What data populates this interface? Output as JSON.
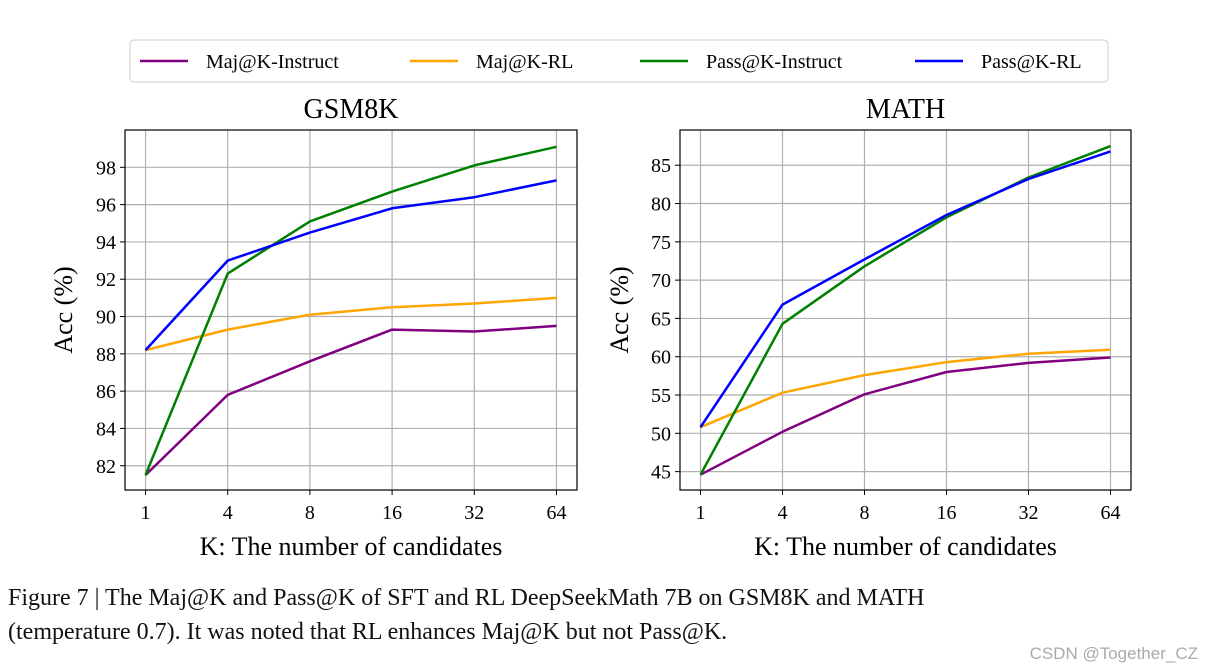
{
  "legend": {
    "placement": "top-center",
    "entries": [
      {
        "name": "Maj@K-Instruct",
        "color": "#800080"
      },
      {
        "name": "Maj@K-RL",
        "color": "#FFA500"
      },
      {
        "name": "Pass@K-Instruct",
        "color": "#008000"
      },
      {
        "name": "Pass@K-RL",
        "color": "#0000FF"
      }
    ]
  },
  "chart_data": [
    {
      "type": "line",
      "title": "GSM8K",
      "xlabel": "K: The number of candidates",
      "ylabel": "Acc (%)",
      "categories": [
        "1",
        "4",
        "8",
        "16",
        "32",
        "64"
      ],
      "ylim": [
        80.7,
        100
      ],
      "yticks": [
        82,
        84,
        86,
        88,
        90,
        92,
        94,
        96,
        98
      ],
      "grid": true,
      "series": [
        {
          "name": "Maj@K-Instruct",
          "values": [
            81.5,
            85.8,
            87.6,
            89.3,
            89.2,
            89.5
          ]
        },
        {
          "name": "Maj@K-RL",
          "values": [
            88.2,
            89.3,
            90.1,
            90.5,
            90.7,
            91.0
          ]
        },
        {
          "name": "Pass@K-Instruct",
          "values": [
            81.5,
            92.3,
            95.1,
            96.7,
            98.1,
            99.1
          ]
        },
        {
          "name": "Pass@K-RL",
          "values": [
            88.2,
            93.0,
            94.5,
            95.8,
            96.4,
            97.3
          ]
        }
      ]
    },
    {
      "type": "line",
      "title": "MATH",
      "xlabel": "K: The number of candidates",
      "ylabel": "Acc (%)",
      "categories": [
        "1",
        "4",
        "8",
        "16",
        "32",
        "64"
      ],
      "ylim": [
        42.6,
        89.6
      ],
      "yticks": [
        45,
        50,
        55,
        60,
        65,
        70,
        75,
        80,
        85
      ],
      "grid": true,
      "series": [
        {
          "name": "Maj@K-Instruct",
          "values": [
            44.6,
            50.2,
            55.1,
            58.0,
            59.2,
            59.9
          ]
        },
        {
          "name": "Maj@K-RL",
          "values": [
            50.8,
            55.3,
            57.6,
            59.3,
            60.4,
            60.9
          ]
        },
        {
          "name": "Pass@K-Instruct",
          "values": [
            44.6,
            64.3,
            71.8,
            78.2,
            83.4,
            87.5
          ]
        },
        {
          "name": "Pass@K-RL",
          "values": [
            50.8,
            66.8,
            72.7,
            78.5,
            83.2,
            86.8
          ]
        }
      ]
    }
  ],
  "caption": {
    "line1": "Figure 7 | The Maj@K and Pass@K of SFT and RL DeepSeekMath 7B on GSM8K and MATH",
    "line2": "(temperature 0.7). It was noted that RL enhances Maj@K but not Pass@K."
  },
  "watermark": "CSDN @Together_CZ"
}
